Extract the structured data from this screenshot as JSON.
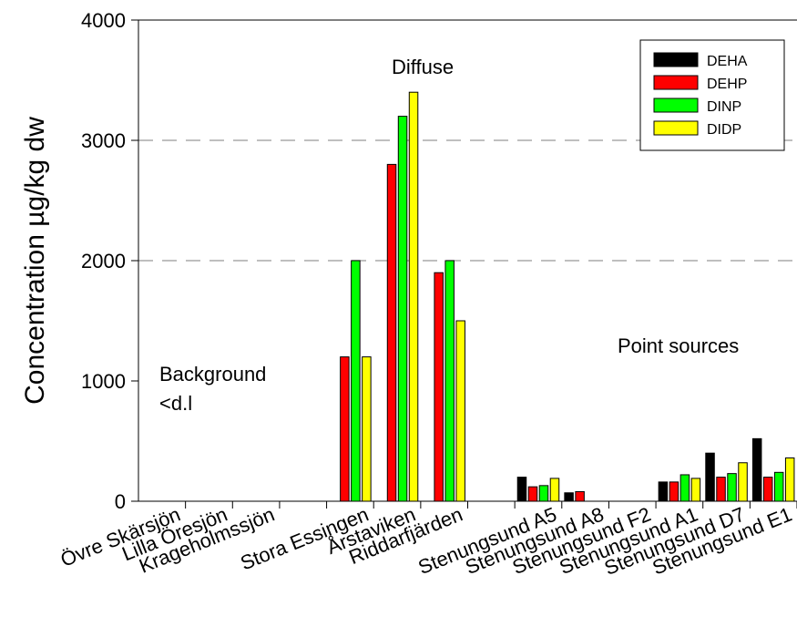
{
  "chart_data": {
    "type": "bar",
    "title": "",
    "xlabel": "",
    "ylabel": "Concentration µg/kg dw",
    "ylim": [
      0,
      4000
    ],
    "yticks": [
      0,
      1000,
      2000,
      3000,
      4000
    ],
    "grid": "horizontal dashed at 2000 and 3000",
    "legend_position": "top-right",
    "categories": [
      "Övre Skärsjön",
      "Lilla Öresjön",
      "Krageholmssjön",
      "",
      "Stora Essingen",
      "Årstaviken",
      "Riddarfjärden",
      "",
      "Stenungsund A5",
      "Stenungsund A8",
      "Stenungsund F2",
      "Stenungsund A1",
      "Stenungsund D7",
      "Stenungsund E1"
    ],
    "series": [
      {
        "name": "DEHA",
        "color": "#000000",
        "values": [
          0,
          0,
          0,
          null,
          0,
          0,
          0,
          null,
          200,
          70,
          0,
          160,
          400,
          520
        ]
      },
      {
        "name": "DEHP",
        "color": "#ff0000",
        "values": [
          0,
          0,
          0,
          null,
          1200,
          2800,
          1900,
          null,
          120,
          80,
          0,
          160,
          200,
          200
        ]
      },
      {
        "name": "DINP",
        "color": "#00ff00",
        "values": [
          0,
          0,
          0,
          null,
          2000,
          3200,
          2000,
          null,
          130,
          0,
          0,
          220,
          230,
          240
        ]
      },
      {
        "name": "DIDP",
        "color": "#ffff00",
        "values": [
          0,
          0,
          0,
          null,
          1200,
          3400,
          1500,
          null,
          190,
          0,
          0,
          190,
          320,
          360
        ]
      }
    ],
    "annotations": [
      {
        "text": "Background",
        "near": "Övre Skärsjön"
      },
      {
        "text": "<d.l",
        "near": "Övre Skärsjön"
      },
      {
        "text": "Diffuse",
        "near": "Årstaviken"
      },
      {
        "text": "Point sources",
        "near": "Stenungsund D7"
      }
    ]
  }
}
